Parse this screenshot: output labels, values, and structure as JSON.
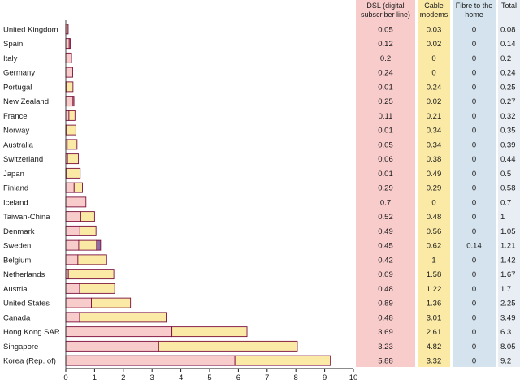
{
  "chart_data": {
    "type": "bar",
    "stacked": true,
    "orientation": "horizontal",
    "xlim": [
      0,
      10
    ],
    "xticks": [
      "0",
      "1",
      "2",
      "3",
      "4",
      "5",
      "6",
      "7",
      "8",
      "9",
      "10"
    ],
    "categories": [
      "United Kingdom",
      "Spain",
      "Italy",
      "Germany",
      "Portugal",
      "New Zealand",
      "France",
      "Norway",
      "Australia",
      "Switzerland",
      "Japan",
      "Finland",
      "Iceland",
      "Taiwan-China",
      "Denmark",
      "Sweden",
      "Belgium",
      "Netherlands",
      "Austria",
      "United States",
      "Canada",
      "Hong Kong SAR",
      "Singapore",
      "Korea (Rep. of)"
    ],
    "series": [
      {
        "name": "DSL (digital subscriber line)",
        "color": "#f9cccc",
        "values": [
          0.05,
          0.12,
          0.2,
          0.24,
          0.01,
          0.25,
          0.11,
          0.01,
          0.05,
          0.06,
          0.01,
          0.29,
          0.7,
          0.52,
          0.49,
          0.45,
          0.42,
          0.09,
          0.48,
          0.89,
          0.48,
          3.69,
          3.23,
          5.88
        ],
        "labels": [
          "0.05",
          "0.12",
          "0.2",
          "0.24",
          "0.01",
          "0.25",
          "0.11",
          "0.01",
          "0.05",
          "0.06",
          "0.01",
          "0.29",
          "0.7",
          "0.52",
          "0.49",
          "0.45",
          "0.42",
          "0.09",
          "0.48",
          "0.89",
          "0.48",
          "3.69",
          "3.23",
          "5.88"
        ]
      },
      {
        "name": "Cable modems",
        "color": "#fbeaa6",
        "values": [
          0.03,
          0.02,
          0,
          0,
          0.24,
          0.02,
          0.21,
          0.34,
          0.34,
          0.38,
          0.49,
          0.29,
          0,
          0.48,
          0.56,
          0.62,
          1,
          1.58,
          1.22,
          1.36,
          3.01,
          2.61,
          4.82,
          3.32
        ],
        "labels": [
          "0.03",
          "0.02",
          "0",
          "0",
          "0.24",
          "0.02",
          "0.21",
          "0.34",
          "0.34",
          "0.38",
          "0.49",
          "0.29",
          "0",
          "0.48",
          "0.56",
          "0.62",
          "1",
          "1.58",
          "1.22",
          "1.36",
          "3.01",
          "2.61",
          "4.82",
          "3.32"
        ]
      },
      {
        "name": "Fibre to the home",
        "color": "#d4e3ee",
        "values": [
          0,
          0,
          0,
          0,
          0,
          0,
          0,
          0,
          0,
          0,
          0,
          0,
          0,
          0,
          0,
          0.14,
          0,
          0,
          0,
          0,
          0,
          0,
          0,
          0
        ],
        "labels": [
          "0",
          "0",
          "0",
          "0",
          "0",
          "0",
          "0",
          "0",
          "0",
          "0",
          "0",
          "0",
          "0",
          "0",
          "0",
          "0.14",
          "0",
          "0",
          "0",
          "0",
          "0",
          "0",
          "0",
          "0"
        ]
      }
    ],
    "total": {
      "name": "Total",
      "color": "#e8eef4",
      "labels": [
        "0.08",
        "0.14",
        "0.2",
        "0.24",
        "0.25",
        "0.27",
        "0.32",
        "0.35",
        "0.39",
        "0.44",
        "0.5",
        "0.58",
        "0.7",
        "1",
        "1.05",
        "1.21",
        "1.42",
        "1.67",
        "1.7",
        "2.25",
        "3.49",
        "6.3",
        "8.05",
        "9.2"
      ]
    },
    "headers": {
      "dsl": [
        "DSL (digital",
        "subscriber line)"
      ],
      "cable": [
        "Cable",
        "modems"
      ],
      "fibre": [
        "Fibre to the",
        "home"
      ],
      "total": [
        "Total"
      ]
    },
    "bar_stroke_color": "#7a0e3a",
    "fibre_color_in_bars": "#8a6fa8",
    "legend": "none",
    "grid": false
  }
}
